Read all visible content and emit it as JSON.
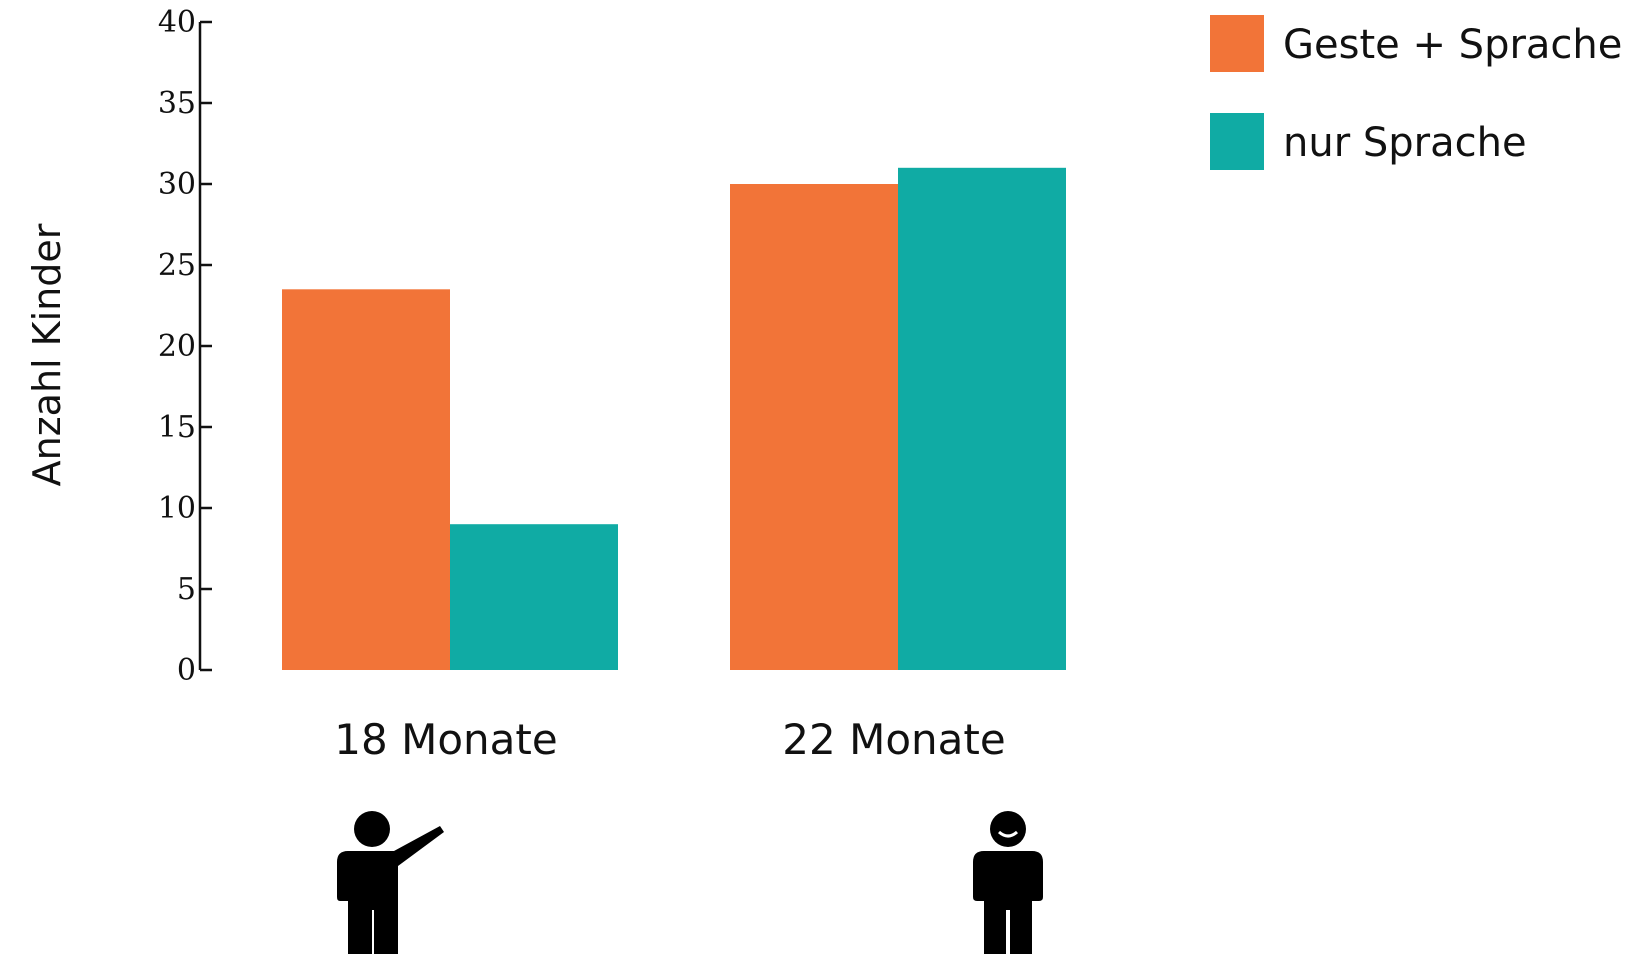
{
  "chart_data": {
    "type": "bar",
    "categories": [
      "18 Monate",
      "22 Monate"
    ],
    "series": [
      {
        "name": "Geste + Sprache",
        "values": [
          23.5,
          30
        ],
        "color": "#F27438"
      },
      {
        "name": "nur Sprache",
        "values": [
          9,
          31
        ],
        "color": "#10ABA4"
      }
    ],
    "ylabel": "Anzahl Kinder",
    "xlabel": "",
    "ylim": [
      0,
      40
    ],
    "yticks": [
      0,
      5,
      10,
      15,
      20,
      25,
      30,
      35,
      40
    ],
    "legend_position": "top-right",
    "grid": false
  },
  "icons": {
    "18 Monate": "pointing-child-icon",
    "22 Monate": "smiling-child-icon"
  }
}
